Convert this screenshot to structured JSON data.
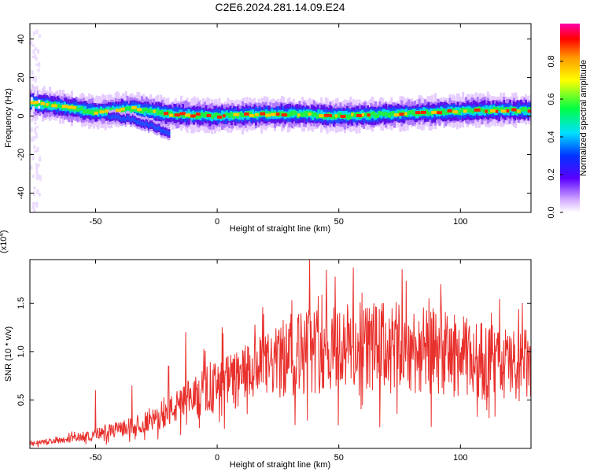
{
  "title": "C2E6.2024.281.14.09.E24",
  "chart_data": [
    {
      "type": "heatmap",
      "xlabel": "Height of straight line (km)",
      "ylabel": "Frequency (Hz)",
      "xlim": [
        -77,
        129
      ],
      "ylim": [
        -50,
        48
      ],
      "xticks": [
        -50,
        0,
        50,
        100
      ],
      "yticks": [
        -40,
        -20,
        0,
        20,
        40
      ],
      "colorbar": {
        "label": "Normalized spectral amplitude",
        "range": [
          0,
          1
        ],
        "ticks": [
          0.0,
          0.2,
          0.4,
          0.6,
          0.8
        ]
      },
      "ridge": [
        {
          "x": -77,
          "freq": 7
        },
        {
          "x": -65,
          "freq": 5
        },
        {
          "x": -50,
          "freq": 2
        },
        {
          "x": -35,
          "freq": 4
        },
        {
          "x": -20,
          "freq": 1
        },
        {
          "x": 0,
          "freq": 0
        },
        {
          "x": 20,
          "freq": 1
        },
        {
          "x": 35,
          "freq": 1
        },
        {
          "x": 50,
          "freq": 0
        },
        {
          "x": 70,
          "freq": 1
        },
        {
          "x": 90,
          "freq": 2
        },
        {
          "x": 110,
          "freq": 3
        },
        {
          "x": 129,
          "freq": 3
        }
      ],
      "branch": [
        {
          "x": -45,
          "freq": 0
        },
        {
          "x": -35,
          "freq": -2
        },
        {
          "x": -25,
          "freq": -6
        },
        {
          "x": -20,
          "freq": -9
        }
      ]
    },
    {
      "type": "line",
      "xlabel": "Height of straight line (km)",
      "ylabel": "SNR (10 * v/v)",
      "multiplier": "(x10",
      "multiplier_exp": "4",
      "xlim": [
        -77,
        129
      ],
      "ylim": [
        0,
        1.95
      ],
      "xticks": [
        -50,
        0,
        50,
        100
      ],
      "yticks": [
        0.5,
        1.0,
        1.5
      ],
      "trend": [
        {
          "x": -77,
          "y": 0.05
        },
        {
          "x": -60,
          "y": 0.1
        },
        {
          "x": -40,
          "y": 0.2
        },
        {
          "x": -25,
          "y": 0.3
        },
        {
          "x": -12,
          "y": 0.5
        },
        {
          "x": 0,
          "y": 0.65
        },
        {
          "x": 15,
          "y": 0.8
        },
        {
          "x": 25,
          "y": 0.9
        },
        {
          "x": 35,
          "y": 1.0
        },
        {
          "x": 50,
          "y": 1.05
        },
        {
          "x": 70,
          "y": 1.05
        },
        {
          "x": 90,
          "y": 1.0
        },
        {
          "x": 110,
          "y": 0.9
        },
        {
          "x": 129,
          "y": 0.85
        }
      ],
      "peaks": [
        {
          "x": -50,
          "y": 0.6
        },
        {
          "x": -35,
          "y": 0.65
        },
        {
          "x": -20,
          "y": 0.85
        },
        {
          "x": -13,
          "y": 1.2
        },
        {
          "x": 2,
          "y": 1.25
        },
        {
          "x": 38,
          "y": 1.95
        },
        {
          "x": 52,
          "y": 1.85
        },
        {
          "x": 76,
          "y": 1.85
        },
        {
          "x": 87,
          "y": 1.55
        }
      ]
    }
  ]
}
